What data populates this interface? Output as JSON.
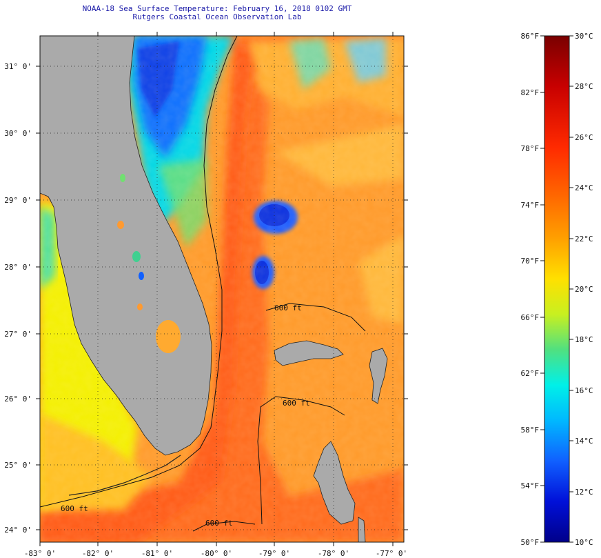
{
  "title_line1": "NOAA-18 Sea Surface Temperature:  February 16, 2018 0102 GMT",
  "title_line2": "Rutgers Coastal Ocean Observation Lab",
  "lat_labels": [
    "31° 0'",
    "30° 0'",
    "29° 0'",
    "28° 0'",
    "27° 0'",
    "26° 0'",
    "25° 0'",
    "24° 0'"
  ],
  "lon_labels": [
    "-83° 0'",
    "-82° 0'",
    "-81° 0'",
    "-80° 0'",
    "-79° 0'",
    "-78° 0'",
    "-77° 0'"
  ],
  "isobath_label": "600 ft",
  "colorbar": {
    "fahrenheit_labels": [
      "86°F",
      "82°F",
      "78°F",
      "74°F",
      "70°F",
      "66°F",
      "62°F",
      "58°F",
      "54°F",
      "50°F"
    ],
    "celsius_labels": [
      "30°C",
      "28°C",
      "26°C",
      "24°C",
      "22°C",
      "20°C",
      "18°C",
      "16°C",
      "14°C",
      "12°C",
      "10°C"
    ],
    "stops": [
      "#7a0000",
      "#d40000",
      "#ff3c00",
      "#ff8c00",
      "#ffd000",
      "#d8f000",
      "#60e070",
      "#00f0e0",
      "#00b0ff",
      "#1060ff",
      "#0010d0",
      "#00008a"
    ]
  },
  "colors": {
    "land": "#aaaaaa",
    "gulf_stream": "#ff6a1a",
    "open_ocean": "#ff9a2a",
    "gulf_coast_water": "#f0f000",
    "cold_shelf_water": "#1070ff"
  }
}
